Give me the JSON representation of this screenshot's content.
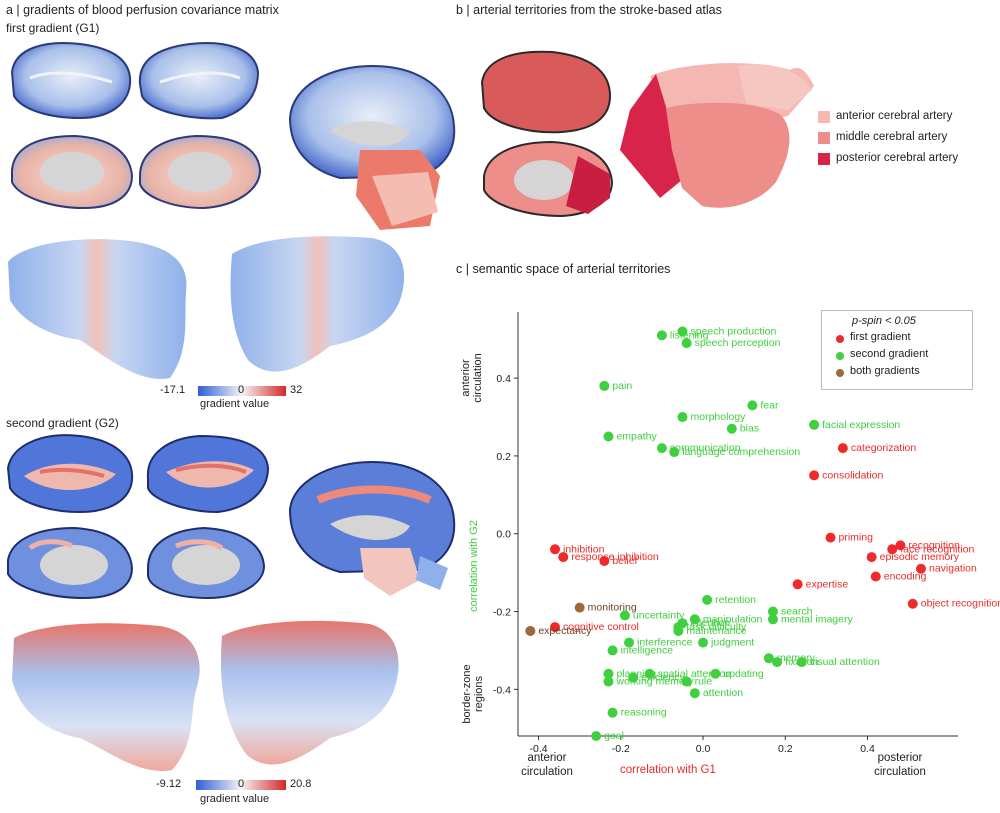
{
  "panel_a": {
    "title": "a  |  gradients of blood perfusion covariance matrix",
    "g1_label": "first gradient (G1)",
    "g2_label": "second gradient (G2)",
    "g1_colorbar": {
      "min": "-17.1",
      "mid": "0",
      "max": "32",
      "label": "gradient value"
    },
    "g2_colorbar": {
      "min": "-9.12",
      "mid": "0",
      "max": "20.8",
      "label": "gradient value"
    }
  },
  "panel_b": {
    "title": "b  |  arterial territories from the stroke-based atlas",
    "legend": [
      {
        "label": "anterior cerebral artery",
        "color": "#f4b7b1"
      },
      {
        "label": "middle cerebral artery",
        "color": "#ee8e8a"
      },
      {
        "label": "posterior cerebral artery",
        "color": "#d8244a"
      }
    ]
  },
  "panel_c": {
    "title": "c  |  semantic space of arterial territories",
    "top_axis_label": [
      "anterior",
      "circulation"
    ],
    "bottom_axis_label": [
      "border-zone",
      "regions"
    ],
    "x_left_label": [
      "anterior",
      "circulation"
    ],
    "x_right_label": [
      "posterior",
      "circulation"
    ],
    "legend_title": "p-spin < 0.05",
    "legend": [
      {
        "label": "first gradient",
        "color": "#ee2a2a"
      },
      {
        "label": "second gradient",
        "color": "#3fcf3f"
      },
      {
        "label": "both gradients",
        "color": "#a0683a"
      }
    ]
  },
  "colors": {
    "red": "#ee2a2a",
    "green": "#3fcf3f",
    "brown": "#a0683a",
    "blue": "#3b6fd8"
  },
  "chart_data": {
    "type": "scatter",
    "xlabel": "correlation with G1",
    "ylabel": "correlation with G2",
    "xlim": [
      -0.45,
      0.62
    ],
    "ylim": [
      -0.52,
      0.57
    ],
    "xticks": [
      "-0.4",
      "-0.2",
      "0.0",
      "0.2",
      "0.4"
    ],
    "xtick_values": [
      -0.4,
      -0.2,
      0.0,
      0.2,
      0.4
    ],
    "yticks": [
      "-0.4",
      "-0.2",
      "0.0",
      "0.2",
      "0.4"
    ],
    "ytick_values": [
      -0.4,
      -0.2,
      0.0,
      0.2,
      0.4
    ],
    "series": [
      {
        "name": "first gradient",
        "points": [
          {
            "x": -0.36,
            "y": -0.04,
            "label": "inhibition"
          },
          {
            "x": -0.34,
            "y": -0.06,
            "label": "response inhibition"
          },
          {
            "x": -0.24,
            "y": -0.07,
            "label": "belief"
          },
          {
            "x": -0.36,
            "y": -0.24,
            "label": "cognitive control"
          },
          {
            "x": 0.23,
            "y": -0.13,
            "label": "expertise"
          },
          {
            "x": 0.31,
            "y": -0.01,
            "label": "priming"
          },
          {
            "x": 0.27,
            "y": 0.15,
            "label": "consolidation"
          },
          {
            "x": 0.34,
            "y": 0.22,
            "label": "categorization"
          },
          {
            "x": 0.41,
            "y": -0.06,
            "label": "episodic memory"
          },
          {
            "x": 0.46,
            "y": -0.04,
            "label": "face recognition"
          },
          {
            "x": 0.48,
            "y": -0.03,
            "label": "recognition"
          },
          {
            "x": 0.53,
            "y": -0.09,
            "label": "navigation"
          },
          {
            "x": 0.42,
            "y": -0.11,
            "label": "encoding"
          },
          {
            "x": 0.51,
            "y": -0.18,
            "label": "object recognition"
          }
        ]
      },
      {
        "name": "second gradient",
        "points": [
          {
            "x": -0.1,
            "y": 0.51,
            "label": "listening"
          },
          {
            "x": -0.05,
            "y": 0.52,
            "label": "speech production"
          },
          {
            "x": -0.04,
            "y": 0.49,
            "label": "speech perception"
          },
          {
            "x": -0.24,
            "y": 0.38,
            "label": "pain"
          },
          {
            "x": -0.05,
            "y": 0.3,
            "label": "morphology"
          },
          {
            "x": 0.12,
            "y": 0.33,
            "label": "fear"
          },
          {
            "x": 0.07,
            "y": 0.27,
            "label": "bias"
          },
          {
            "x": 0.27,
            "y": 0.28,
            "label": "facial expression"
          },
          {
            "x": -0.23,
            "y": 0.25,
            "label": "empathy"
          },
          {
            "x": -0.1,
            "y": 0.22,
            "label": "communication"
          },
          {
            "x": -0.07,
            "y": 0.21,
            "label": "language comprehension"
          },
          {
            "x": -0.06,
            "y": -0.24,
            "label": "task difficulty"
          },
          {
            "x": -0.05,
            "y": -0.23,
            "label": "intention"
          },
          {
            "x": -0.02,
            "y": -0.22,
            "label": "manipulation"
          },
          {
            "x": -0.19,
            "y": -0.21,
            "label": "uncertainty"
          },
          {
            "x": 0.01,
            "y": -0.17,
            "label": "retention"
          },
          {
            "x": 0.17,
            "y": -0.2,
            "label": "search"
          },
          {
            "x": 0.17,
            "y": -0.22,
            "label": "mental imagery"
          },
          {
            "x": -0.06,
            "y": -0.25,
            "label": "maintenance"
          },
          {
            "x": -0.18,
            "y": -0.28,
            "label": "interference"
          },
          {
            "x": -0.22,
            "y": -0.3,
            "label": "intelligence"
          },
          {
            "x": 0.0,
            "y": -0.28,
            "label": "judgment"
          },
          {
            "x": 0.16,
            "y": -0.32,
            "label": "memory"
          },
          {
            "x": 0.18,
            "y": -0.33,
            "label": "fixation"
          },
          {
            "x": 0.24,
            "y": -0.33,
            "label": "visual attention"
          },
          {
            "x": -0.23,
            "y": -0.36,
            "label": "planning"
          },
          {
            "x": -0.23,
            "y": -0.38,
            "label": "working memory"
          },
          {
            "x": -0.17,
            "y": -0.37,
            "label": "efficiency"
          },
          {
            "x": -0.13,
            "y": -0.36,
            "label": "spatial attention"
          },
          {
            "x": 0.03,
            "y": -0.36,
            "label": "updating"
          },
          {
            "x": -0.04,
            "y": -0.38,
            "label": "rule"
          },
          {
            "x": -0.02,
            "y": -0.41,
            "label": "attention"
          },
          {
            "x": -0.22,
            "y": -0.46,
            "label": "reasoning"
          },
          {
            "x": -0.26,
            "y": -0.52,
            "label": "goal"
          }
        ]
      },
      {
        "name": "both gradients",
        "points": [
          {
            "x": -0.42,
            "y": -0.25,
            "label": "expectancy"
          },
          {
            "x": -0.3,
            "y": -0.19,
            "label": "monitoring"
          }
        ]
      }
    ]
  }
}
